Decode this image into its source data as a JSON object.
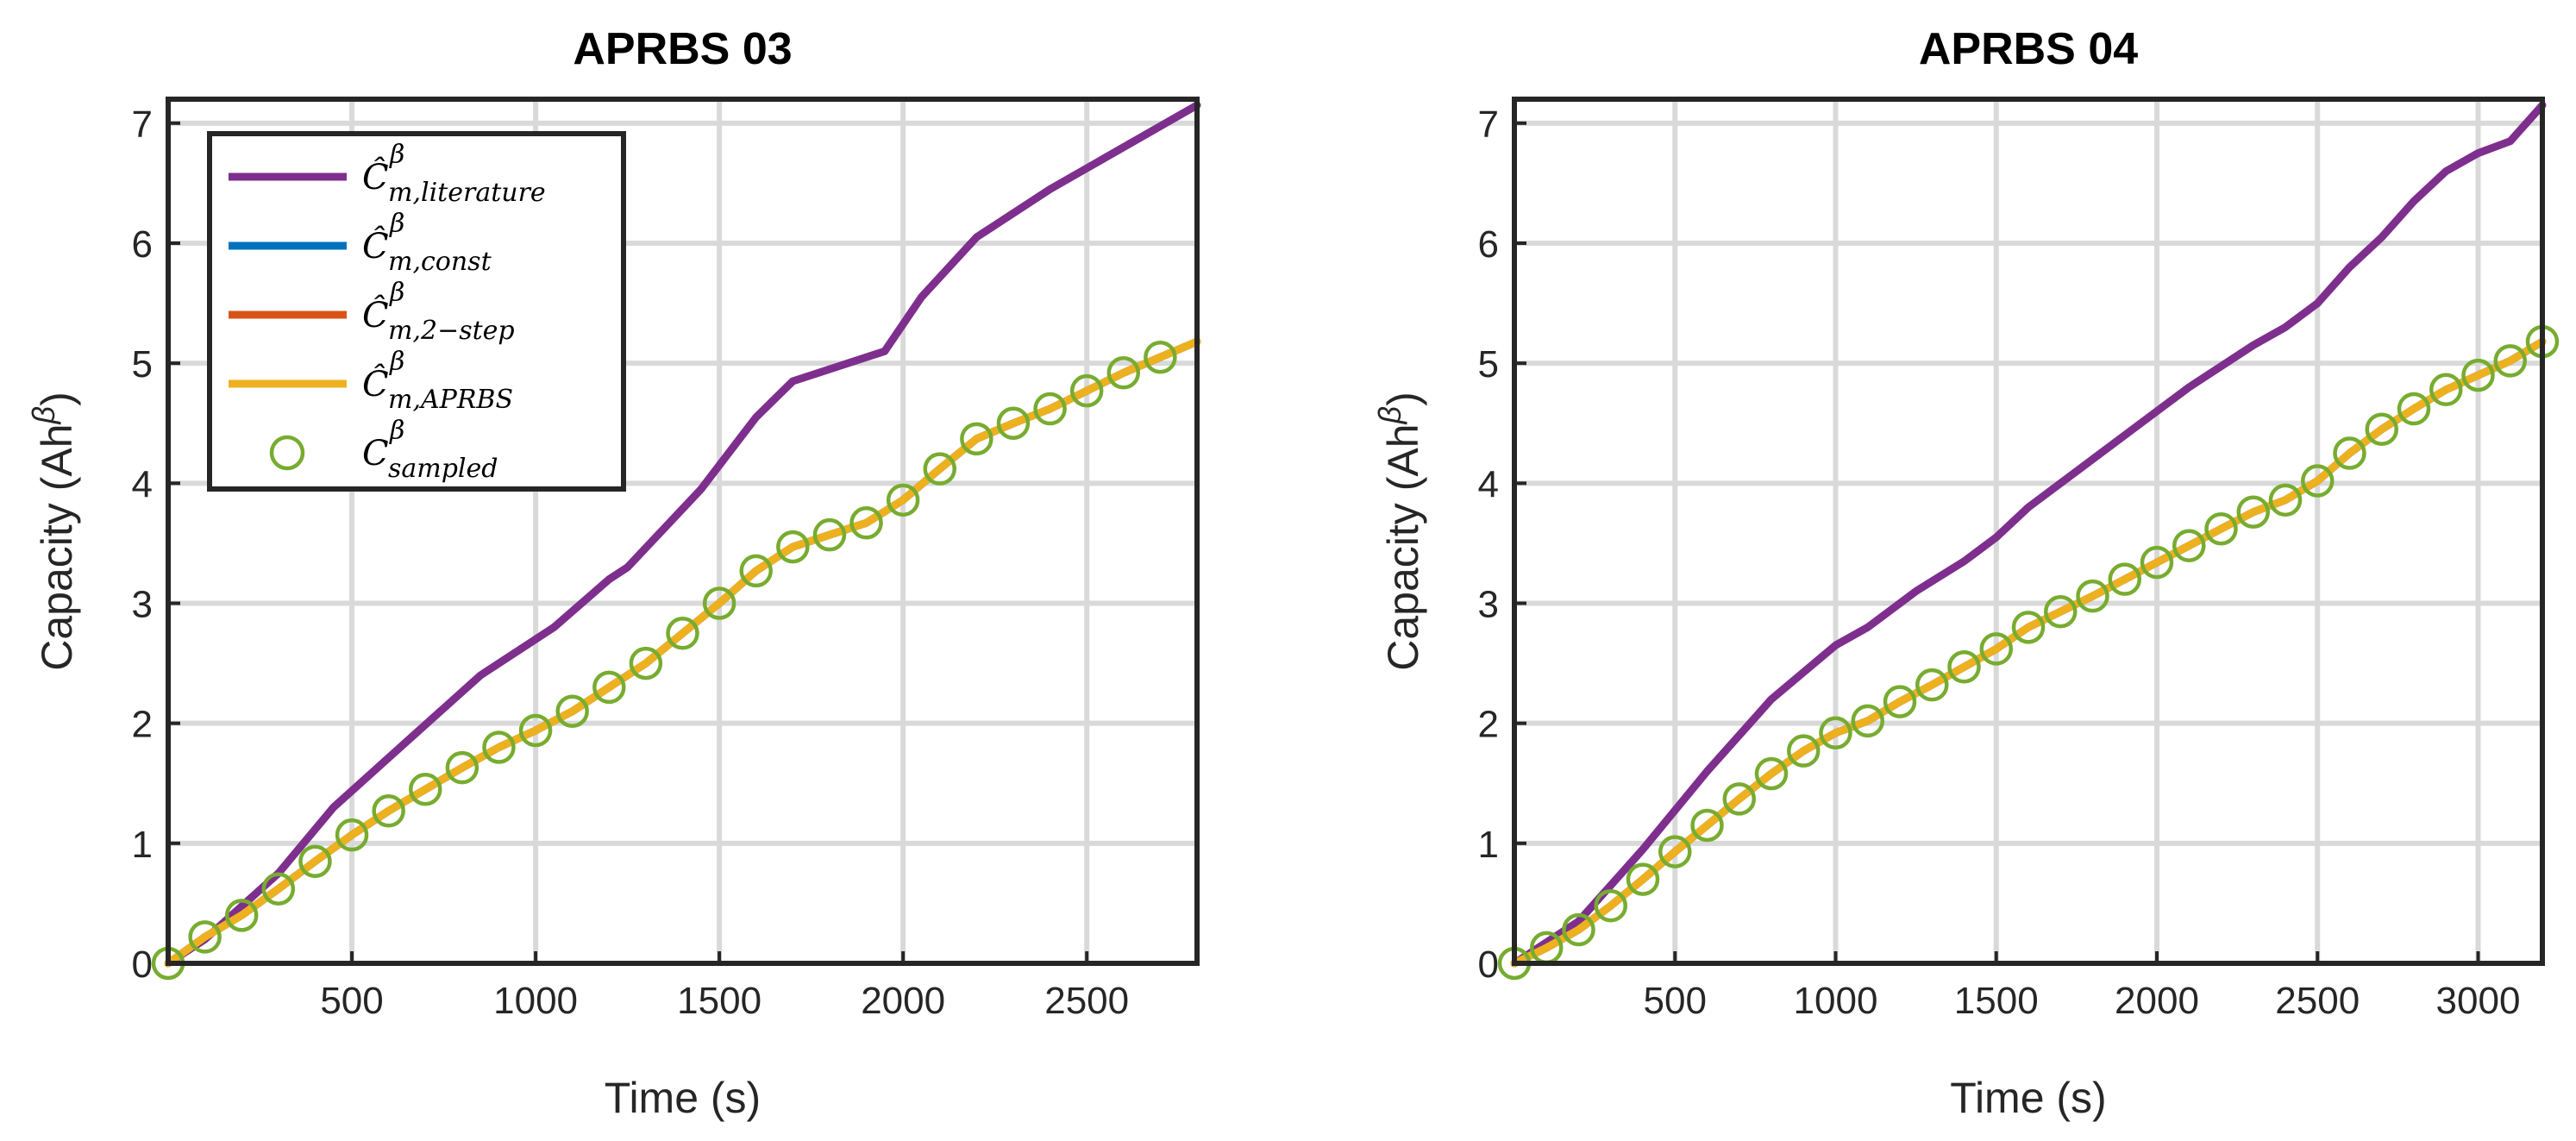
{
  "colors": {
    "literature": "#7E2F8E",
    "const": "#0072BD",
    "two_step": "#D95319",
    "aprbs": "#EDB120",
    "sampled": "#77AC30",
    "grid": "#d9d9d9",
    "axis": "#262626"
  },
  "legend": [
    {
      "key": "literature",
      "symbol": "Ĉ",
      "sup": "β",
      "sub": "m,literature",
      "marker": "line"
    },
    {
      "key": "const",
      "symbol": "Ĉ",
      "sup": "β",
      "sub": "m,const",
      "marker": "line"
    },
    {
      "key": "two_step",
      "symbol": "Ĉ",
      "sup": "β",
      "sub": "m,2−step",
      "marker": "line"
    },
    {
      "key": "aprbs",
      "symbol": "Ĉ",
      "sup": "β",
      "sub": "m,APRBS",
      "marker": "line"
    },
    {
      "key": "sampled",
      "symbol": "C",
      "sup": "β",
      "sub": "sampled",
      "marker": "circle"
    }
  ],
  "chart_data": [
    {
      "type": "line",
      "title": "APRBS 03",
      "xlabel": "Time (s)",
      "ylabel_main": "Capacity (Ah",
      "ylabel_sup": "β",
      "ylabel_end": ")",
      "xlim": [
        0,
        2800
      ],
      "ylim": [
        0,
        7.2
      ],
      "xticks": [
        500,
        1000,
        1500,
        2000,
        2500
      ],
      "yticks": [
        0,
        1,
        2,
        3,
        4,
        5,
        6,
        7
      ],
      "grid": true,
      "legend_position": "top-left",
      "series": [
        {
          "key": "literature",
          "name": "C-hat m,literature",
          "x": [
            0,
            100,
            300,
            450,
            650,
            850,
            1050,
            1200,
            1250,
            1450,
            1600,
            1700,
            1800,
            1950,
            2050,
            2200,
            2250,
            2400,
            2600,
            2800
          ],
          "y": [
            0,
            0.2,
            0.75,
            1.3,
            1.85,
            2.4,
            2.8,
            3.2,
            3.3,
            3.95,
            4.55,
            4.85,
            4.95,
            5.1,
            5.55,
            6.05,
            6.15,
            6.45,
            6.8,
            7.15
          ]
        },
        {
          "key": "const",
          "name": "C-hat m,const",
          "x": [
            0,
            100,
            200,
            300,
            400,
            500,
            600,
            700,
            800,
            900,
            1000,
            1100,
            1200,
            1300,
            1400,
            1500,
            1600,
            1700,
            1800,
            1900,
            2000,
            2100,
            2200,
            2300,
            2400,
            2500,
            2600,
            2700,
            2800
          ],
          "y": [
            0,
            0.22,
            0.4,
            0.62,
            0.85,
            1.07,
            1.27,
            1.45,
            1.63,
            1.8,
            1.94,
            2.1,
            2.3,
            2.5,
            2.75,
            3.0,
            3.27,
            3.47,
            3.57,
            3.67,
            3.86,
            4.12,
            4.37,
            4.5,
            4.62,
            4.77,
            4.92,
            5.05,
            5.18
          ]
        },
        {
          "key": "two_step",
          "name": "C-hat m,2-step",
          "x": [
            0,
            100,
            200,
            300,
            400,
            500,
            600,
            700,
            800,
            900,
            1000,
            1100,
            1200,
            1300,
            1400,
            1500,
            1600,
            1700,
            1800,
            1900,
            2000,
            2100,
            2200,
            2300,
            2400,
            2500,
            2600,
            2700,
            2800
          ],
          "y": [
            0,
            0.22,
            0.4,
            0.62,
            0.85,
            1.07,
            1.27,
            1.45,
            1.63,
            1.8,
            1.94,
            2.1,
            2.3,
            2.5,
            2.75,
            3.0,
            3.27,
            3.47,
            3.57,
            3.67,
            3.86,
            4.12,
            4.37,
            4.5,
            4.62,
            4.77,
            4.92,
            5.05,
            5.18
          ]
        },
        {
          "key": "aprbs",
          "name": "C-hat m,APRBS",
          "x": [
            0,
            100,
            200,
            300,
            400,
            500,
            600,
            700,
            800,
            900,
            1000,
            1100,
            1200,
            1300,
            1400,
            1500,
            1600,
            1700,
            1800,
            1900,
            2000,
            2100,
            2200,
            2300,
            2400,
            2500,
            2600,
            2700,
            2800
          ],
          "y": [
            0,
            0.22,
            0.4,
            0.62,
            0.85,
            1.07,
            1.27,
            1.45,
            1.63,
            1.8,
            1.94,
            2.1,
            2.3,
            2.5,
            2.75,
            3.0,
            3.27,
            3.47,
            3.57,
            3.67,
            3.86,
            4.12,
            4.37,
            4.5,
            4.62,
            4.77,
            4.92,
            5.05,
            5.18
          ]
        },
        {
          "key": "sampled",
          "name": "C sampled",
          "x": [
            0,
            100,
            200,
            300,
            400,
            500,
            600,
            700,
            800,
            900,
            1000,
            1100,
            1200,
            1300,
            1400,
            1500,
            1600,
            1700,
            1800,
            1900,
            2000,
            2100,
            2200,
            2300,
            2400,
            2500,
            2600,
            2700
          ],
          "y": [
            0,
            0.22,
            0.4,
            0.62,
            0.85,
            1.07,
            1.27,
            1.45,
            1.63,
            1.8,
            1.94,
            2.1,
            2.3,
            2.5,
            2.75,
            3.0,
            3.27,
            3.47,
            3.57,
            3.67,
            3.86,
            4.12,
            4.37,
            4.5,
            4.62,
            4.77,
            4.92,
            5.05
          ]
        }
      ]
    },
    {
      "type": "line",
      "title": "APRBS 04",
      "xlabel": "Time (s)",
      "ylabel_main": "Capacity (Ah",
      "ylabel_sup": "β",
      "ylabel_end": ")",
      "xlim": [
        0,
        3200
      ],
      "ylim": [
        0,
        7.2
      ],
      "xticks": [
        500,
        1000,
        1500,
        2000,
        2500,
        3000
      ],
      "yticks": [
        0,
        1,
        2,
        3,
        4,
        5,
        6,
        7
      ],
      "grid": true,
      "legend_position": "none",
      "series": [
        {
          "key": "literature",
          "name": "C-hat m,literature",
          "x": [
            0,
            200,
            400,
            600,
            800,
            1000,
            1100,
            1250,
            1400,
            1500,
            1600,
            1800,
            2000,
            2100,
            2300,
            2400,
            2450,
            2500,
            2600,
            2700,
            2800,
            2900,
            3000,
            3100,
            3200
          ],
          "y": [
            0,
            0.35,
            0.95,
            1.6,
            2.2,
            2.65,
            2.8,
            3.1,
            3.35,
            3.55,
            3.8,
            4.2,
            4.6,
            4.8,
            5.15,
            5.3,
            5.4,
            5.5,
            5.8,
            6.05,
            6.35,
            6.6,
            6.75,
            6.85,
            7.15
          ]
        },
        {
          "key": "const",
          "name": "C-hat m,const",
          "x": [
            0,
            100,
            200,
            300,
            400,
            500,
            600,
            700,
            800,
            900,
            1000,
            1100,
            1200,
            1300,
            1400,
            1500,
            1600,
            1700,
            1800,
            1900,
            2000,
            2100,
            2200,
            2300,
            2400,
            2500,
            2600,
            2700,
            2800,
            2900,
            3000,
            3100,
            3200
          ],
          "y": [
            0,
            0.13,
            0.28,
            0.48,
            0.7,
            0.93,
            1.15,
            1.37,
            1.58,
            1.77,
            1.92,
            2.02,
            2.18,
            2.32,
            2.47,
            2.62,
            2.8,
            2.93,
            3.06,
            3.2,
            3.34,
            3.48,
            3.62,
            3.76,
            3.86,
            4.02,
            4.25,
            4.45,
            4.62,
            4.78,
            4.9,
            5.02,
            5.18
          ]
        },
        {
          "key": "two_step",
          "name": "C-hat m,2-step",
          "x": [
            0,
            100,
            200,
            300,
            400,
            500,
            600,
            700,
            800,
            900,
            1000,
            1100,
            1200,
            1300,
            1400,
            1500,
            1600,
            1700,
            1800,
            1900,
            2000,
            2100,
            2200,
            2300,
            2400,
            2500,
            2600,
            2700,
            2800,
            2900,
            3000,
            3100,
            3200
          ],
          "y": [
            0,
            0.13,
            0.28,
            0.48,
            0.7,
            0.93,
            1.15,
            1.37,
            1.58,
            1.77,
            1.92,
            2.02,
            2.18,
            2.32,
            2.47,
            2.62,
            2.8,
            2.93,
            3.06,
            3.2,
            3.34,
            3.48,
            3.62,
            3.76,
            3.86,
            4.02,
            4.25,
            4.45,
            4.62,
            4.78,
            4.9,
            5.02,
            5.18
          ]
        },
        {
          "key": "aprbs",
          "name": "C-hat m,APRBS",
          "x": [
            0,
            100,
            200,
            300,
            400,
            500,
            600,
            700,
            800,
            900,
            1000,
            1100,
            1200,
            1300,
            1400,
            1500,
            1600,
            1700,
            1800,
            1900,
            2000,
            2100,
            2200,
            2300,
            2400,
            2500,
            2600,
            2700,
            2800,
            2900,
            3000,
            3100,
            3200
          ],
          "y": [
            0,
            0.13,
            0.28,
            0.48,
            0.7,
            0.93,
            1.15,
            1.37,
            1.58,
            1.77,
            1.92,
            2.02,
            2.18,
            2.32,
            2.47,
            2.62,
            2.8,
            2.93,
            3.06,
            3.2,
            3.34,
            3.48,
            3.62,
            3.76,
            3.86,
            4.02,
            4.25,
            4.45,
            4.62,
            4.78,
            4.9,
            5.02,
            5.18
          ]
        },
        {
          "key": "sampled",
          "name": "C sampled",
          "x": [
            0,
            100,
            200,
            300,
            400,
            500,
            600,
            700,
            800,
            900,
            1000,
            1100,
            1200,
            1300,
            1400,
            1500,
            1600,
            1700,
            1800,
            1900,
            2000,
            2100,
            2200,
            2300,
            2400,
            2500,
            2600,
            2700,
            2800,
            2900,
            3000,
            3100,
            3200
          ],
          "y": [
            0,
            0.13,
            0.28,
            0.48,
            0.7,
            0.93,
            1.15,
            1.37,
            1.58,
            1.77,
            1.92,
            2.02,
            2.18,
            2.32,
            2.47,
            2.62,
            2.8,
            2.93,
            3.06,
            3.2,
            3.34,
            3.48,
            3.62,
            3.76,
            3.86,
            4.02,
            4.25,
            4.45,
            4.62,
            4.78,
            4.9,
            5.02,
            5.18
          ]
        }
      ]
    }
  ]
}
